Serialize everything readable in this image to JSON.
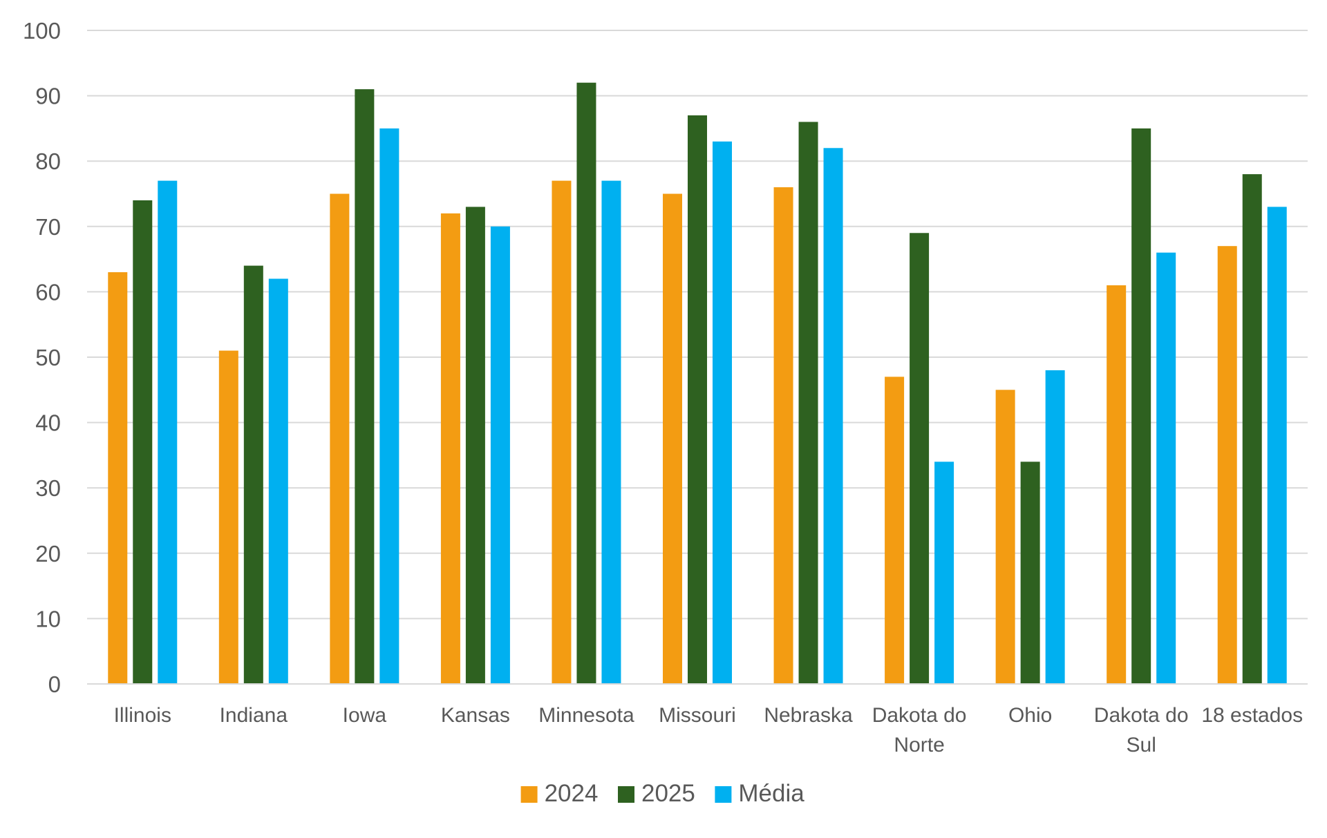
{
  "chart_data": {
    "type": "bar",
    "categories": [
      [
        "Illinois"
      ],
      [
        "Indiana"
      ],
      [
        "Iowa"
      ],
      [
        "Kansas"
      ],
      [
        "Minnesota"
      ],
      [
        "Missouri"
      ],
      [
        "Nebraska"
      ],
      [
        "Dakota do",
        "Norte"
      ],
      [
        "Ohio"
      ],
      [
        "Dakota do",
        "Sul"
      ],
      [
        "18 estados"
      ]
    ],
    "series": [
      {
        "name": "2024",
        "color": "#F39C12",
        "values": [
          63,
          51,
          75,
          72,
          77,
          75,
          76,
          47,
          45,
          61,
          67
        ]
      },
      {
        "name": "2025",
        "color": "#2E6120",
        "values": [
          74,
          64,
          91,
          73,
          92,
          87,
          86,
          69,
          34,
          85,
          78
        ]
      },
      {
        "name": "Média",
        "color": "#00B0F0",
        "values": [
          77,
          62,
          85,
          70,
          77,
          83,
          82,
          34,
          48,
          66,
          73
        ]
      }
    ],
    "ylim": [
      0,
      100
    ],
    "yticks": [
      0,
      10,
      20,
      30,
      40,
      50,
      60,
      70,
      80,
      90,
      100
    ],
    "grid": true,
    "legend_position": "bottom-center",
    "title": "",
    "xlabel": "",
    "ylabel": ""
  }
}
